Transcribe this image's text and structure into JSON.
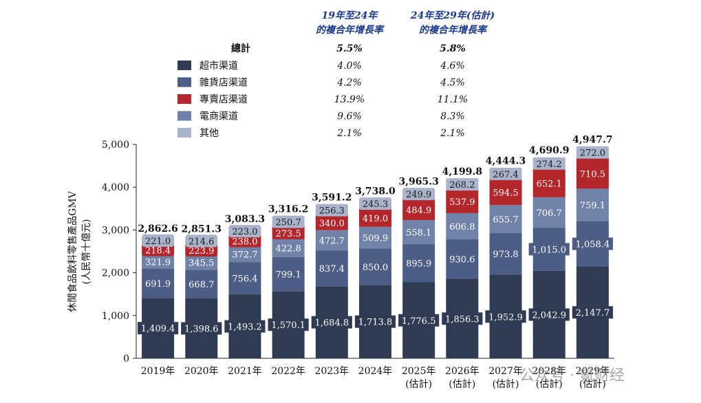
{
  "chart_data": {
    "type": "bar",
    "stacked": true,
    "ylabel": "休閒食品飲料零售產品GMV",
    "ylabel_unit": "(人民幣十億元)",
    "ylim": [
      0,
      5000
    ],
    "yticks": [
      "0",
      "1,000",
      "2,000",
      "3,000",
      "4,000",
      "5,000"
    ],
    "ytick_values": [
      0,
      1000,
      2000,
      3000,
      4000,
      5000
    ],
    "categories": [
      [
        "2019年"
      ],
      [
        "2020年"
      ],
      [
        "2021年"
      ],
      [
        "2022年"
      ],
      [
        "2023年"
      ],
      [
        "2024年"
      ],
      [
        "2025年",
        "(估計)"
      ],
      [
        "2026年",
        "(估計)"
      ],
      [
        "2027年",
        "(估計)"
      ],
      [
        "2028年",
        "(估計)"
      ],
      [
        "2029年",
        "(估計)"
      ]
    ],
    "series": [
      {
        "name": "超市渠道",
        "color": "#2f3b52",
        "label_color": "#ffffff",
        "values": [
          1409.4,
          1398.6,
          1493.2,
          1570.1,
          1684.8,
          1713.8,
          1776.5,
          1856.3,
          1952.9,
          2042.9,
          2147.7
        ],
        "labels": [
          "1,409.4",
          "1,398.6",
          "1,493.2",
          "1,570.1",
          "1,684.8",
          "1,713.8",
          "1,776.5",
          "1,856.3",
          "1,952.9",
          "2,042.9",
          "2,147.7"
        ]
      },
      {
        "name": "雜貨店渠道",
        "color": "#4d5d86",
        "label_color": "#ffffff",
        "values": [
          691.9,
          668.7,
          756.4,
          799.1,
          837.4,
          850.0,
          895.9,
          930.6,
          973.8,
          1015.0,
          1058.4
        ],
        "labels": [
          "691.9",
          "668.7",
          "756.4",
          "799.1",
          "837.4",
          "850.0",
          "895.9",
          "930.6",
          "973.8",
          "1,015.0",
          "1,058.4"
        ]
      },
      {
        "name": "專賣店渠道",
        "color": "#b3262b",
        "label_color": "#ffffff",
        "values": [
          218.4,
          223.9,
          238.0,
          273.5,
          340.0,
          419.0,
          484.9,
          537.9,
          594.5,
          652.1,
          710.5
        ],
        "labels": [
          "218.4",
          "223.9",
          "238.0",
          "273.5",
          "340.0",
          "419.0",
          "484.9",
          "537.9",
          "594.5",
          "652.1",
          "710.5"
        ]
      },
      {
        "name": "電商渠道",
        "color": "#7182a8",
        "label_color": "#ffffff",
        "values": [
          321.9,
          345.5,
          372.7,
          422.8,
          472.7,
          509.9,
          558.1,
          606.8,
          655.7,
          706.7,
          759.1
        ],
        "labels": [
          "321.9",
          "345.5",
          "372.7",
          "422.8",
          "472.7",
          "509.9",
          "558.1",
          "606.8",
          "655.7",
          "706.7",
          "759.1"
        ]
      },
      {
        "name": "其他",
        "color": "#a9b3ca",
        "label_color": "#1a1a1a",
        "values": [
          221.0,
          214.6,
          223.0,
          250.7,
          256.3,
          245.3,
          249.9,
          268.2,
          267.4,
          274.2,
          272.0
        ],
        "labels": [
          "221.0",
          "214.6",
          "223.0",
          "250.7",
          "256.3",
          "245.3",
          "249.9",
          "268.2",
          "267.4",
          "274.2",
          "272.0"
        ]
      }
    ],
    "stack_order": [
      0,
      1,
      3,
      2,
      4
    ],
    "totals": [
      "2,862.6",
      "2,851.3",
      "3,083.3",
      "3,316.2",
      "3,591.2",
      "3,738.0",
      "3,965.3",
      "4,199.8",
      "4,444.3",
      "4,690.9",
      "4,947.7"
    ],
    "legend": {
      "headers": [
        [
          "19年至24年",
          "的複合年增長率"
        ],
        [
          "24年至29年(估計)",
          "的複合年增長率"
        ]
      ],
      "total_label": "總計",
      "total_rates": [
        "5.5%",
        "5.8%"
      ],
      "rows": [
        {
          "label": "超市渠道",
          "color": "#2f3b52",
          "rates": [
            "4.0%",
            "4.6%"
          ]
        },
        {
          "label": "雜貨店渠道",
          "color": "#4d5d86",
          "rates": [
            "4.2%",
            "4.5%"
          ]
        },
        {
          "label": "專賣店渠道",
          "color": "#b3262b",
          "rates": [
            "13.9%",
            "11.1%"
          ]
        },
        {
          "label": "電商渠道",
          "color": "#7182a8",
          "rates": [
            "9.6%",
            "8.3%"
          ]
        },
        {
          "label": "其他",
          "color": "#a9b3ca",
          "rates": [
            "2.1%",
            "2.1%"
          ]
        }
      ]
    }
  },
  "watermark": "公众号 · 氪财经"
}
